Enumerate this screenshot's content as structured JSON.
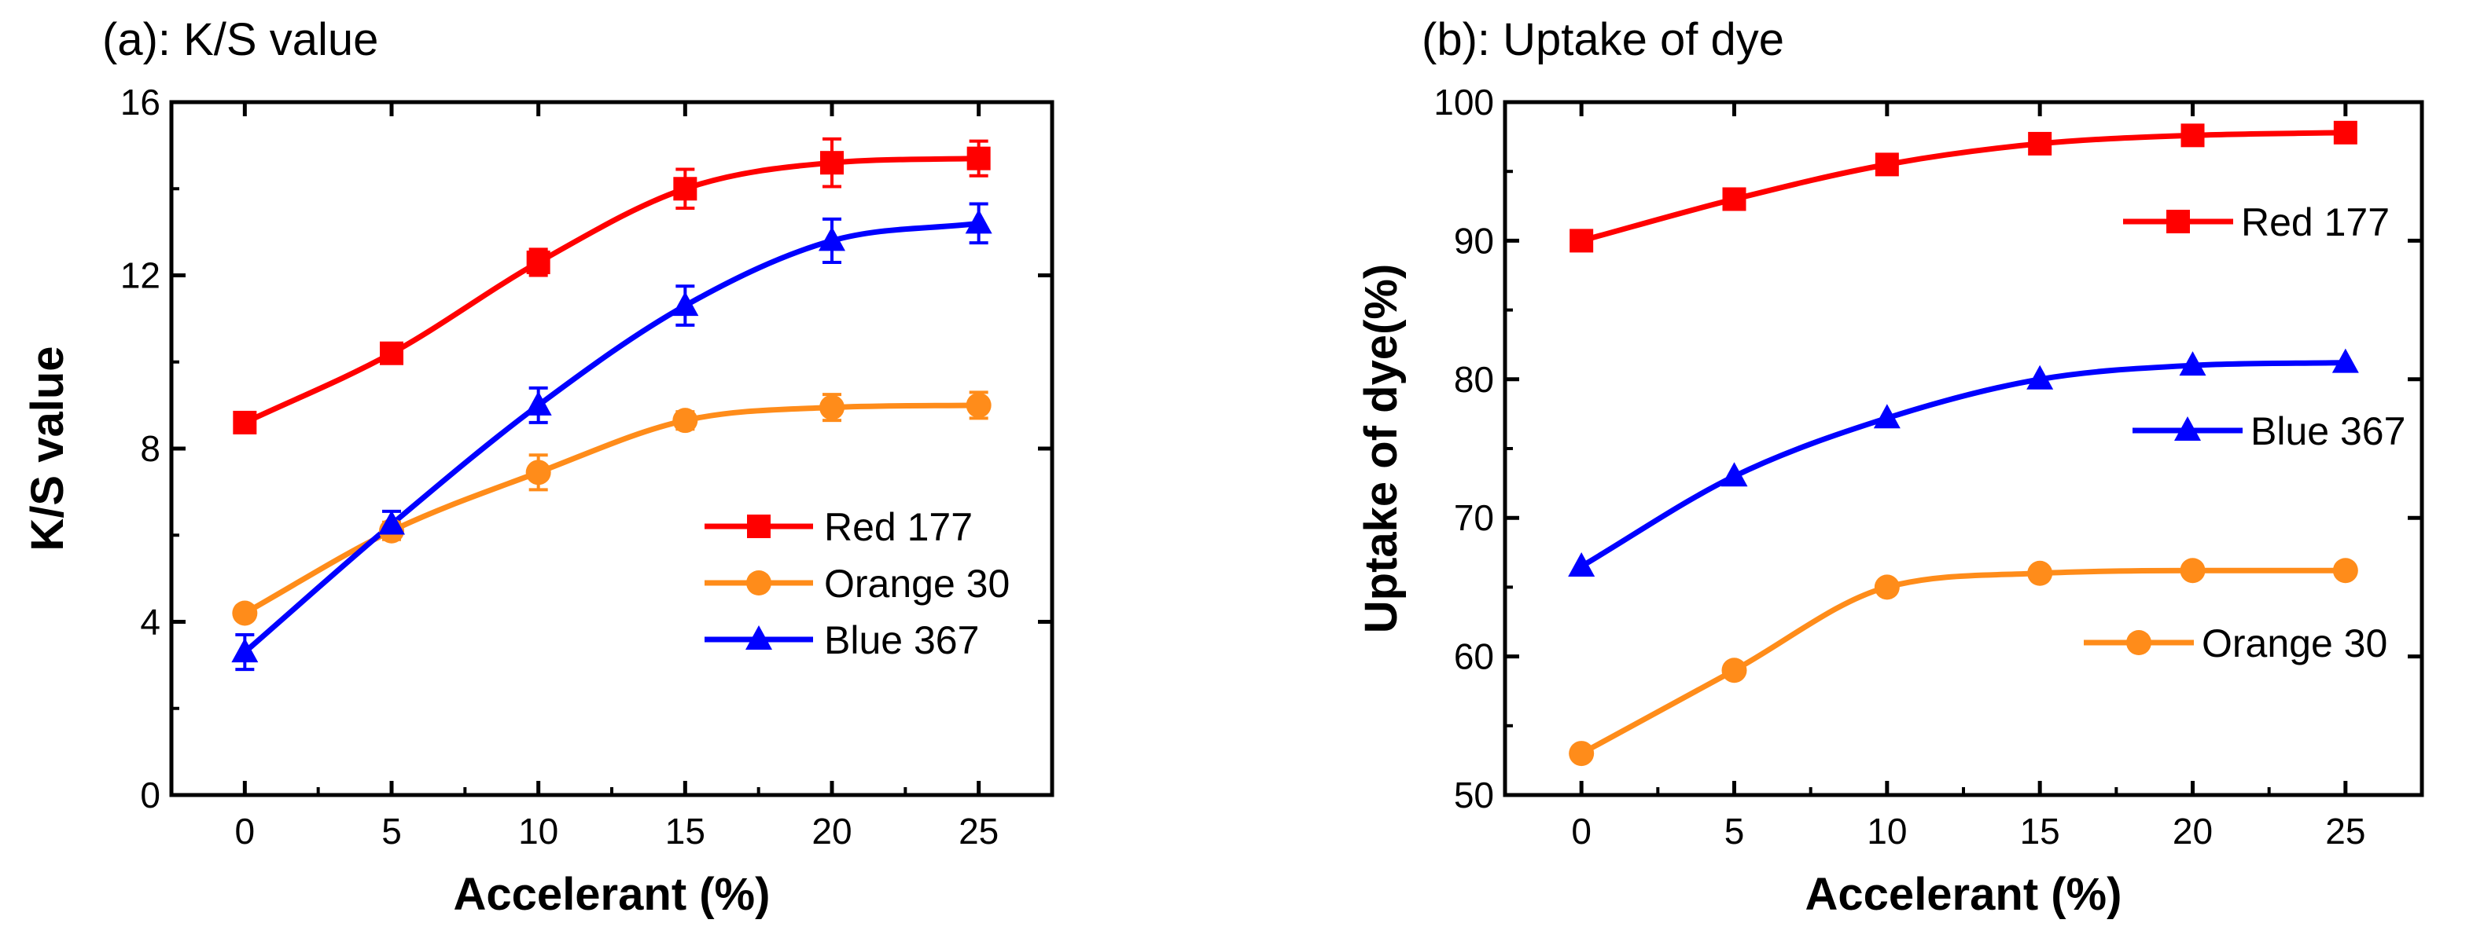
{
  "colors": {
    "red": "#ff0000",
    "orange": "#ff8c1a",
    "blue": "#0000ff",
    "axis": "#000000"
  },
  "chart_data": [
    {
      "type": "line",
      "title": "(a): K/S value",
      "xlabel": "Accelerant (%)",
      "ylabel": "K/S value",
      "x": [
        0,
        5,
        10,
        15,
        20,
        25
      ],
      "xlim": [
        -2.5,
        27.5
      ],
      "ylim": [
        0,
        16
      ],
      "xticks": [
        0,
        5,
        10,
        15,
        20,
        25
      ],
      "yticks": [
        0,
        4,
        8,
        12,
        16
      ],
      "legend_position": "lower-right",
      "smooth": true,
      "series": [
        {
          "name": "Red 177",
          "color": "red",
          "marker": "square",
          "values": [
            8.6,
            10.2,
            12.3,
            14.0,
            14.6,
            14.7
          ],
          "errors": [
            0.15,
            0.2,
            0.3,
            0.45,
            0.55,
            0.4
          ]
        },
        {
          "name": "Orange 30",
          "color": "orange",
          "marker": "circle",
          "values": [
            4.2,
            6.1,
            7.45,
            8.65,
            8.95,
            9.0
          ],
          "errors": [
            0.15,
            0.2,
            0.4,
            0.2,
            0.3,
            0.3
          ]
        },
        {
          "name": "Blue 367",
          "color": "blue",
          "marker": "triangle",
          "values": [
            3.3,
            6.25,
            9.0,
            11.3,
            12.8,
            13.2
          ],
          "errors": [
            0.4,
            0.3,
            0.4,
            0.45,
            0.5,
            0.45
          ]
        }
      ]
    },
    {
      "type": "line",
      "title": "(b): Uptake of dye",
      "xlabel": "Accelerant (%)",
      "ylabel": "Uptake of dye(%)",
      "x": [
        0,
        5,
        10,
        15,
        20,
        25
      ],
      "xlim": [
        -2.5,
        27.5
      ],
      "ylim": [
        50,
        100
      ],
      "xticks": [
        0,
        5,
        10,
        15,
        20,
        25
      ],
      "yticks": [
        50,
        60,
        70,
        80,
        90,
        100
      ],
      "legend_position": "right, next to each curve",
      "smooth": true,
      "series": [
        {
          "name": "Red 177",
          "color": "red",
          "marker": "square",
          "values": [
            90.0,
            93.0,
            95.5,
            97.0,
            97.6,
            97.8
          ]
        },
        {
          "name": "Blue 367",
          "color": "blue",
          "marker": "triangle",
          "values": [
            66.5,
            73.0,
            77.2,
            80.0,
            81.0,
            81.2
          ]
        },
        {
          "name": "Orange 30",
          "color": "orange",
          "marker": "circle",
          "values": [
            53.0,
            59.0,
            65.0,
            66.0,
            66.2,
            66.2
          ]
        }
      ]
    }
  ]
}
